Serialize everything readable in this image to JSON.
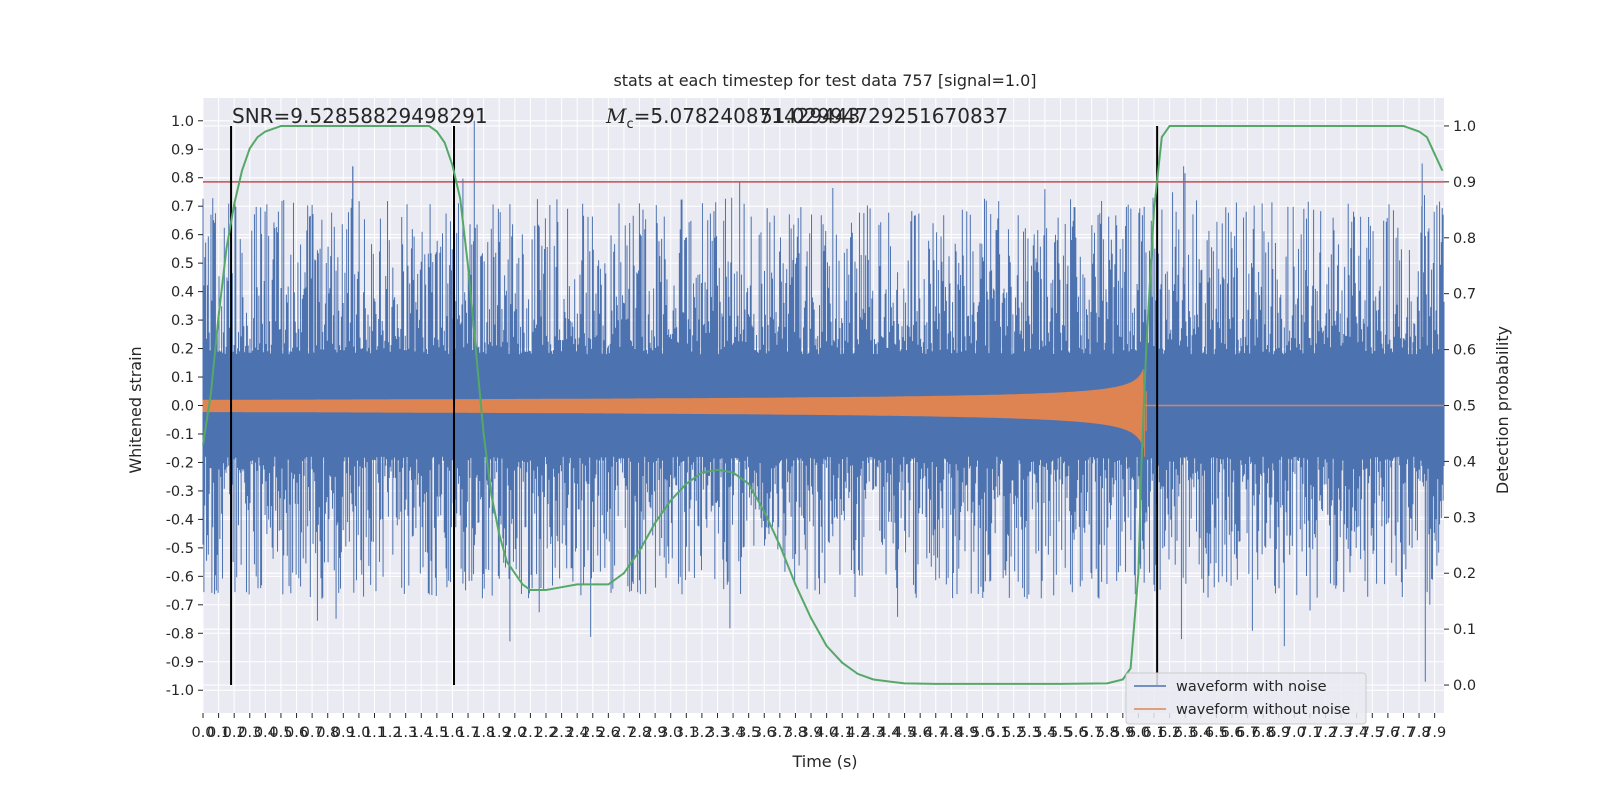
{
  "chart_data": {
    "type": "line",
    "title": "stats at each timestep for test data 757 [signal=1.0]",
    "xlabel": "Time (s)",
    "ylabel_left": "Whitened strain",
    "ylabel_right": "Detection probability",
    "xlim": [
      0.0,
      7.96
    ],
    "ylim_left": [
      -1.08,
      1.08
    ],
    "ylim_right": [
      -0.05,
      1.05
    ],
    "x_ticks": [
      0.0,
      0.1,
      0.2,
      0.3,
      0.4,
      0.5,
      0.6,
      0.7,
      0.8,
      0.9,
      1.0,
      1.1,
      1.2,
      1.3,
      1.4,
      1.5,
      1.6,
      1.7,
      1.8,
      1.9,
      2.0,
      2.1,
      2.2,
      2.3,
      2.4,
      2.5,
      2.6,
      2.7,
      2.8,
      2.9,
      3.0,
      3.1,
      3.2,
      3.3,
      3.4,
      3.5,
      3.6,
      3.7,
      3.8,
      3.9,
      4.0,
      4.1,
      4.2,
      4.3,
      4.4,
      4.5,
      4.6,
      4.7,
      4.8,
      4.9,
      5.0,
      5.1,
      5.2,
      5.3,
      5.4,
      5.5,
      5.6,
      5.7,
      5.8,
      5.9,
      6.0,
      6.1,
      6.2,
      6.3,
      6.4,
      6.5,
      6.6,
      6.7,
      6.8,
      6.9,
      7.0,
      7.1,
      7.2,
      7.3,
      7.4,
      7.5,
      7.6,
      7.7,
      7.8,
      7.9
    ],
    "y_ticks_left": [
      -1.0,
      -0.9,
      -0.8,
      -0.7,
      -0.6,
      -0.5,
      -0.4,
      -0.3,
      -0.2,
      -0.1,
      0.0,
      0.1,
      0.2,
      0.3,
      0.4,
      0.5,
      0.6,
      0.7,
      0.8,
      0.9,
      1.0
    ],
    "y_ticks_right": [
      0.0,
      0.1,
      0.2,
      0.3,
      0.4,
      0.5,
      0.6,
      0.7,
      0.8,
      0.9,
      1.0
    ],
    "threshold": {
      "axis": "right",
      "value": 0.9,
      "color": "#c44e52"
    },
    "vlines": [
      0.18,
      1.61,
      6.12
    ],
    "noisy_envelope": {
      "typical_peak": 0.45,
      "max": 0.84,
      "min": -0.97
    },
    "series": [
      {
        "name": "waveform with noise",
        "color": "#4c72b0",
        "axis": "left"
      },
      {
        "name": "waveform without noise",
        "color": "#dd8452",
        "axis": "left",
        "amplitude_start": 0.02,
        "amplitude_peak": 0.19,
        "peak_time": 6.03
      },
      {
        "color": "#55a868",
        "axis": "right",
        "x": [
          0.0,
          0.05,
          0.1,
          0.15,
          0.2,
          0.25,
          0.3,
          0.35,
          0.4,
          0.5,
          0.7,
          1.0,
          1.3,
          1.45,
          1.5,
          1.55,
          1.6,
          1.65,
          1.7,
          1.75,
          1.8,
          1.85,
          1.9,
          1.95,
          2.0,
          2.05,
          2.1,
          2.2,
          2.3,
          2.4,
          2.5,
          2.6,
          2.7,
          2.8,
          2.9,
          3.0,
          3.1,
          3.2,
          3.3,
          3.4,
          3.5,
          3.6,
          3.7,
          3.8,
          3.9,
          4.0,
          4.1,
          4.2,
          4.3,
          4.5,
          4.7,
          5.0,
          5.5,
          5.8,
          5.9,
          5.95,
          6.0,
          6.02,
          6.05,
          6.1,
          6.15,
          6.2,
          6.25,
          6.3,
          6.5,
          7.0,
          7.5,
          7.7,
          7.8,
          7.85,
          7.9,
          7.95
        ],
        "y": [
          0.43,
          0.52,
          0.66,
          0.78,
          0.86,
          0.92,
          0.96,
          0.98,
          0.99,
          1.0,
          1.0,
          1.0,
          1.0,
          1.0,
          0.99,
          0.97,
          0.93,
          0.87,
          0.75,
          0.6,
          0.45,
          0.34,
          0.27,
          0.22,
          0.2,
          0.18,
          0.17,
          0.17,
          0.175,
          0.18,
          0.18,
          0.18,
          0.2,
          0.24,
          0.29,
          0.33,
          0.36,
          0.38,
          0.385,
          0.38,
          0.36,
          0.31,
          0.25,
          0.18,
          0.12,
          0.07,
          0.04,
          0.02,
          0.01,
          0.003,
          0.002,
          0.002,
          0.002,
          0.003,
          0.01,
          0.03,
          0.2,
          0.4,
          0.6,
          0.85,
          0.98,
          1.0,
          1.0,
          1.0,
          1.0,
          1.0,
          1.0,
          1.0,
          0.99,
          0.98,
          0.95,
          0.92
        ]
      }
    ]
  },
  "annotations": {
    "snr": "SNR=9.52858829498291",
    "mc_symbol": "M",
    "mc_subscript": "c",
    "mc_value": "=5.078240871429443",
    "overlap_value": "51.02994729251670837"
  },
  "legend": {
    "items": [
      {
        "label": "waveform with noise",
        "color": "#4c72b0"
      },
      {
        "label": "waveform without noise",
        "color": "#dd8452"
      }
    ]
  },
  "style": {
    "axes_bg": "#eaeaf2",
    "grid": "#ffffff",
    "vline_color": "#000000"
  }
}
